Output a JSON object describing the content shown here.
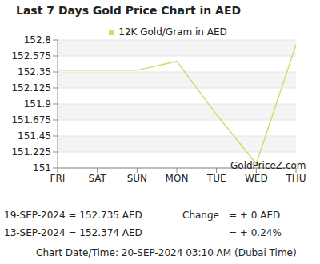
{
  "chart_data": {
    "type": "line",
    "title": "Last 7 Days Gold Price Chart in AED",
    "categories": [
      "FRI",
      "SAT",
      "SUN",
      "MON",
      "TUE",
      "WED",
      "THU"
    ],
    "series": [
      {
        "name": "12K Gold/Gram in AED",
        "color": "#c8e06e",
        "values": [
          152.374,
          152.374,
          152.374,
          152.5,
          151.75,
          151.06,
          152.735
        ]
      }
    ],
    "ylim": [
      151,
      152.8
    ],
    "yticks": [
      151,
      151.225,
      151.45,
      151.675,
      151.9,
      152.125,
      152.35,
      152.575,
      152.8
    ],
    "grid": true,
    "legend": "top",
    "annotations": [
      "GoldPriceZ.com",
      "19-SEP-2024 = 152.735 AED",
      "13-SEP-2024 = 152.374 AED",
      "Change",
      "= + 0 AED",
      "= + 0.24%",
      "Chart Date/Time: 20-SEP-2024 03:10 AM (Dubai Time)"
    ]
  }
}
